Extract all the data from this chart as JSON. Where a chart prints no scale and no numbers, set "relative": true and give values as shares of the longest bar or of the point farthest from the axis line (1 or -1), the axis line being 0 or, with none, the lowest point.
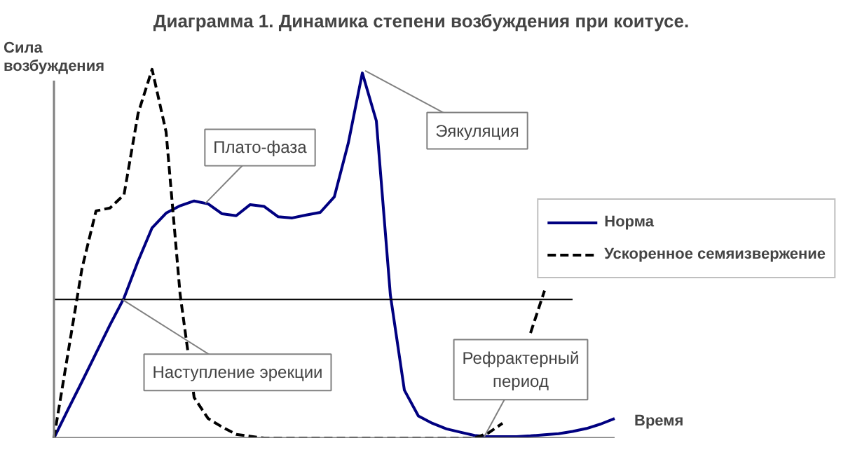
{
  "chart_data": {
    "type": "line",
    "title": "Диаграмма 1. Динамика степени возбуждения при коитусе.",
    "xlabel": "Время",
    "ylabel": "Сила возбуждения",
    "relative": true,
    "legend": "right",
    "marker": "none",
    "categories": [
      null,
      null,
      null,
      null,
      null,
      null,
      null,
      null,
      null,
      null,
      null,
      null,
      null,
      null,
      null,
      null,
      null,
      null,
      null,
      null,
      null,
      null,
      null,
      null,
      null,
      null,
      null,
      null,
      null,
      null,
      null,
      null,
      null,
      null,
      null,
      null,
      null,
      null,
      null,
      null,
      null
    ],
    "series": [
      {
        "name": "Норма",
        "color": "#000080",
        "line_style": "solid",
        "values": [
          0,
          0.077,
          0.153,
          0.23,
          0.307,
          0.38,
          0.48,
          0.57,
          0.61,
          0.63,
          0.643,
          0.635,
          0.608,
          0.603,
          0.633,
          0.628,
          0.6,
          0.597,
          0.605,
          0.612,
          0.654,
          0.8,
          0.99,
          0.86,
          0.388,
          0.13,
          0.06,
          0.04,
          0.025,
          0.016,
          0.007,
          0.004,
          0.004,
          0.004,
          0.006,
          0.009,
          0.012,
          0.018,
          0.026,
          0.038,
          0.053
        ]
      },
      {
        "name": "Ускоренное семяизвержение",
        "color": "#000000",
        "line_style": "dashed",
        "values": [
          0,
          0.23,
          0.46,
          0.616,
          0.624,
          0.66,
          0.88,
          1.0,
          0.83,
          0.39,
          0.11,
          0.053,
          0.03,
          0.01,
          0.005,
          0,
          0,
          0,
          0,
          0,
          0,
          0,
          0,
          0,
          0,
          0,
          0,
          0,
          0,
          0,
          0,
          0.014,
          0.04,
          null,
          0.285,
          0.4,
          null,
          null,
          null,
          null,
          null
        ]
      }
    ],
    "ref_lines": [
      {
        "axis": "y",
        "value": 0.376,
        "color": "#000000",
        "line_style": "solid"
      }
    ],
    "annotations": [
      "Плато-фаза",
      "Эякуляция",
      "Наступление эрекции",
      "Рефрактерный\nпериод"
    ]
  }
}
